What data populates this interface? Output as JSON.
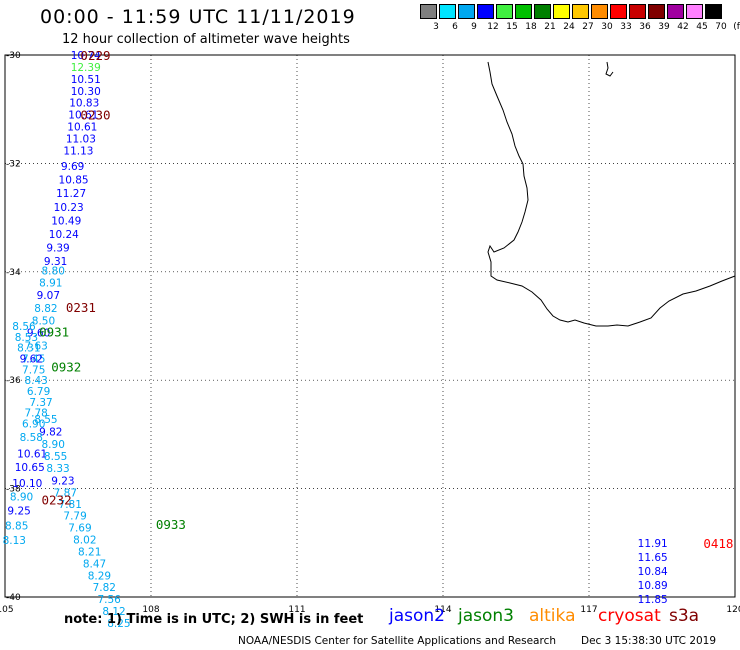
{
  "title": "00:00 - 11:59 UTC 11/11/2019",
  "subtitle": "12 hour collection of altimeter wave heights",
  "legend": {
    "colors": [
      "#7f7f7f",
      "#00e5ff",
      "#00a8f0",
      "#0000ff",
      "#40f040",
      "#00c000",
      "#008000",
      "#ffff00",
      "#ffc800",
      "#ff8c00",
      "#ff0000",
      "#c80000",
      "#800000",
      "#a000a0",
      "#ff80ff",
      "#000000"
    ],
    "labels": [
      "3",
      "6",
      "9",
      "12",
      "15",
      "18",
      "21",
      "24",
      "27",
      "30",
      "33",
      "36",
      "39",
      "42",
      "45",
      "70"
    ],
    "unit": "(ft)"
  },
  "map": {
    "lon_ticks": [
      "105",
      "108",
      "111",
      "114",
      "117",
      "120"
    ],
    "lat_ticks": [
      "-30",
      "-32",
      "-34",
      "-36",
      "-38",
      "-40"
    ],
    "times": [
      {
        "text": "0229",
        "lon": 106.55,
        "lat": -30.0,
        "color": "#800000"
      },
      {
        "text": "0230",
        "lon": 106.55,
        "lat": -31.1,
        "color": "#800000"
      },
      {
        "text": "0231",
        "lon": 106.25,
        "lat": -34.65,
        "color": "#800000"
      },
      {
        "text": "0931",
        "lon": 105.7,
        "lat": -35.1,
        "color": "#008000"
      },
      {
        "text": "0932",
        "lon": 105.95,
        "lat": -35.75,
        "color": "#008000"
      },
      {
        "text": "0232",
        "lon": 105.75,
        "lat": -38.2,
        "color": "#800000"
      },
      {
        "text": "0933",
        "lon": 108.1,
        "lat": -38.65,
        "color": "#008000"
      },
      {
        "text": "0418",
        "lon": 119.35,
        "lat": -39.0,
        "color": "#ff0000"
      }
    ],
    "swh": [
      {
        "v": "10.74",
        "lon": 106.35,
        "lat": -30.0,
        "c": "#0000ff"
      },
      {
        "v": "12.39",
        "lon": 106.35,
        "lat": -30.22,
        "c": "#40f040"
      },
      {
        "v": "10.51",
        "lon": 106.35,
        "lat": -30.44,
        "c": "#0000ff"
      },
      {
        "v": "10.30",
        "lon": 106.35,
        "lat": -30.66,
        "c": "#0000ff"
      },
      {
        "v": "10.83",
        "lon": 106.32,
        "lat": -30.88,
        "c": "#0000ff"
      },
      {
        "v": "10.61",
        "lon": 106.3,
        "lat": -31.1,
        "c": "#0000ff"
      },
      {
        "v": "10.61",
        "lon": 106.28,
        "lat": -31.32,
        "c": "#0000ff"
      },
      {
        "v": "11.03",
        "lon": 106.25,
        "lat": -31.54,
        "c": "#0000ff"
      },
      {
        "v": "11.13",
        "lon": 106.2,
        "lat": -31.76,
        "c": "#0000ff"
      },
      {
        "v": "9.69",
        "lon": 106.15,
        "lat": -32.05,
        "c": "#0000ff"
      },
      {
        "v": "10.85",
        "lon": 106.1,
        "lat": -32.3,
        "c": "#0000ff"
      },
      {
        "v": "11.27",
        "lon": 106.05,
        "lat": -32.55,
        "c": "#0000ff"
      },
      {
        "v": "10.23",
        "lon": 106.0,
        "lat": -32.8,
        "c": "#0000ff"
      },
      {
        "v": "10.49",
        "lon": 105.95,
        "lat": -33.05,
        "c": "#0000ff"
      },
      {
        "v": "10.24",
        "lon": 105.9,
        "lat": -33.3,
        "c": "#0000ff"
      },
      {
        "v": "9.39",
        "lon": 105.85,
        "lat": -33.55,
        "c": "#0000ff"
      },
      {
        "v": "9.31",
        "lon": 105.8,
        "lat": -33.8,
        "c": "#0000ff"
      },
      {
        "v": "8.80",
        "lon": 105.75,
        "lat": -33.98,
        "c": "#00a8f0"
      },
      {
        "v": "8.91",
        "lon": 105.7,
        "lat": -34.2,
        "c": "#00a8f0"
      },
      {
        "v": "9.07",
        "lon": 105.65,
        "lat": -34.43,
        "c": "#0000ff"
      },
      {
        "v": "8.82",
        "lon": 105.6,
        "lat": -34.67,
        "c": "#00a8f0"
      },
      {
        "v": "8.50",
        "lon": 105.55,
        "lat": -34.9,
        "c": "#00a8f0"
      },
      {
        "v": "9.60",
        "lon": 105.45,
        "lat": -35.12,
        "c": "#0000ff"
      },
      {
        "v": "7.63",
        "lon": 105.4,
        "lat": -35.36,
        "c": "#00a8f0"
      },
      {
        "v": "7.45",
        "lon": 105.35,
        "lat": -35.6,
        "c": "#00a8f0"
      },
      {
        "v": "8.56",
        "lon": 105.15,
        "lat": -35.0,
        "c": "#00a8f0"
      },
      {
        "v": "8.53",
        "lon": 105.2,
        "lat": -35.2,
        "c": "#00a8f0"
      },
      {
        "v": "8.31",
        "lon": 105.25,
        "lat": -35.4,
        "c": "#00a8f0"
      },
      {
        "v": "9.62",
        "lon": 105.3,
        "lat": -35.6,
        "c": "#0000ff"
      },
      {
        "v": "7.75",
        "lon": 105.35,
        "lat": -35.8,
        "c": "#00a8f0"
      },
      {
        "v": "8.43",
        "lon": 105.4,
        "lat": -36.0,
        "c": "#00a8f0"
      },
      {
        "v": "6.79",
        "lon": 105.45,
        "lat": -36.2,
        "c": "#00a8f0"
      },
      {
        "v": "7.37",
        "lon": 105.5,
        "lat": -36.4,
        "c": "#00a8f0"
      },
      {
        "v": "7.78",
        "lon": 105.4,
        "lat": -36.6,
        "c": "#00a8f0"
      },
      {
        "v": "6.90",
        "lon": 105.35,
        "lat": -36.8,
        "c": "#00a8f0"
      },
      {
        "v": "8.55",
        "lon": 105.6,
        "lat": -36.72,
        "c": "#00a8f0"
      },
      {
        "v": "9.82",
        "lon": 105.7,
        "lat": -36.95,
        "c": "#0000ff"
      },
      {
        "v": "8.58",
        "lon": 105.3,
        "lat": -37.05,
        "c": "#00a8f0"
      },
      {
        "v": "8.90",
        "lon": 105.75,
        "lat": -37.18,
        "c": "#00a8f0"
      },
      {
        "v": "10.61",
        "lon": 105.25,
        "lat": -37.35,
        "c": "#0000ff"
      },
      {
        "v": "8.55",
        "lon": 105.8,
        "lat": -37.4,
        "c": "#00a8f0"
      },
      {
        "v": "10.65",
        "lon": 105.2,
        "lat": -37.6,
        "c": "#0000ff"
      },
      {
        "v": "8.33",
        "lon": 105.85,
        "lat": -37.62,
        "c": "#00a8f0"
      },
      {
        "v": "9.23",
        "lon": 105.95,
        "lat": -37.85,
        "c": "#0000ff"
      },
      {
        "v": "10.10",
        "lon": 105.15,
        "lat": -37.9,
        "c": "#0000ff"
      },
      {
        "v": "7.87",
        "lon": 106.0,
        "lat": -38.07,
        "c": "#00a8f0"
      },
      {
        "v": "8.90",
        "lon": 105.1,
        "lat": -38.15,
        "c": "#00a8f0"
      },
      {
        "v": "7.81",
        "lon": 106.1,
        "lat": -38.28,
        "c": "#00a8f0"
      },
      {
        "v": "9.25",
        "lon": 105.05,
        "lat": -38.4,
        "c": "#0000ff"
      },
      {
        "v": "7.79",
        "lon": 106.2,
        "lat": -38.5,
        "c": "#00a8f0"
      },
      {
        "v": "8.85",
        "lon": 105.0,
        "lat": -38.68,
        "c": "#00a8f0"
      },
      {
        "v": "7.69",
        "lon": 106.3,
        "lat": -38.72,
        "c": "#00a8f0"
      },
      {
        "v": "8.13",
        "lon": 104.95,
        "lat": -38.95,
        "c": "#00a8f0"
      },
      {
        "v": "8.02",
        "lon": 106.4,
        "lat": -38.94,
        "c": "#00a8f0"
      },
      {
        "v": "8.21",
        "lon": 106.5,
        "lat": -39.16,
        "c": "#00a8f0"
      },
      {
        "v": "8.47",
        "lon": 106.6,
        "lat": -39.38,
        "c": "#00a8f0"
      },
      {
        "v": "8.29",
        "lon": 106.7,
        "lat": -39.6,
        "c": "#00a8f0"
      },
      {
        "v": "7.82",
        "lon": 106.8,
        "lat": -39.82,
        "c": "#00a8f0"
      },
      {
        "v": "7.56",
        "lon": 106.9,
        "lat": -40.04,
        "c": "#00a8f0"
      },
      {
        "v": "8.12",
        "lon": 107.0,
        "lat": -40.26,
        "c": "#00a8f0"
      },
      {
        "v": "8.25",
        "lon": 107.1,
        "lat": -40.48,
        "c": "#00a8f0"
      },
      {
        "v": "11.91",
        "lon": 118.0,
        "lat": -39.0,
        "c": "#0000ff"
      },
      {
        "v": "11.65",
        "lon": 118.0,
        "lat": -39.26,
        "c": "#0000ff"
      },
      {
        "v": "10.84",
        "lon": 118.0,
        "lat": -39.52,
        "c": "#0000ff"
      },
      {
        "v": "10.89",
        "lon": 118.0,
        "lat": -39.78,
        "c": "#0000ff"
      },
      {
        "v": "11.85",
        "lon": 118.0,
        "lat": -40.04,
        "c": "#0000ff"
      }
    ]
  },
  "note": "note: 1) Time is in UTC; 2) SWH is in feet",
  "satellites": [
    {
      "name": "jason2",
      "color": "#0000ff"
    },
    {
      "name": "jason3",
      "color": "#008000"
    },
    {
      "name": "altika",
      "color": "#ff8c00"
    },
    {
      "name": "cryosat",
      "color": "#ff0000"
    },
    {
      "name": "s3a",
      "color": "#800000"
    }
  ],
  "credit": "NOAA/NESDIS Center for Satellite Applications and Research",
  "datestamp": "Dec  3 15:38:30 UTC 2019"
}
